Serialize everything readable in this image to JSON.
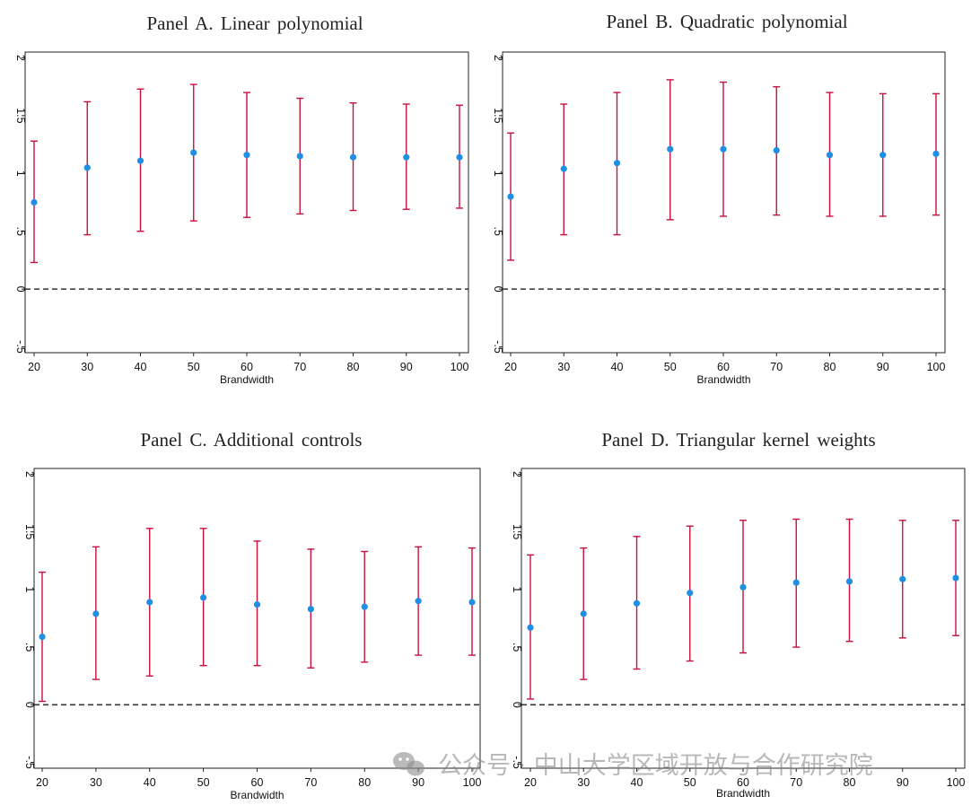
{
  "colors": {
    "ci": "#c8103e",
    "point": "#1f8fe6",
    "frame": "#222222",
    "zero_line": "#333333"
  },
  "watermark": {
    "icon": "wechat-icon",
    "text": "公众号 · 中山大学区域开放与合作研究院"
  },
  "chart_data": [
    {
      "type": "scatter",
      "subtype": "point estimates with confidence intervals",
      "title": "Panel A. Linear polynomial",
      "xlabel": "Brandwidth",
      "ylabel": "",
      "x": [
        20,
        30,
        40,
        50,
        60,
        70,
        80,
        90,
        100
      ],
      "x_tick_labels": [
        "20",
        "30",
        "40",
        "50",
        "60",
        "70",
        "80",
        "90",
        "100"
      ],
      "y_ticks": [
        -0.5,
        0,
        0.5,
        1,
        1.5,
        2
      ],
      "y_tick_labels": [
        "-.5",
        "0",
        ".5",
        "1",
        "1.5",
        "2"
      ],
      "ylim": [
        -0.55,
        2.05
      ],
      "estimate": [
        0.75,
        1.05,
        1.11,
        1.18,
        1.16,
        1.15,
        1.14,
        1.14,
        1.14
      ],
      "ci_upper": [
        1.28,
        1.62,
        1.73,
        1.77,
        1.7,
        1.65,
        1.61,
        1.6,
        1.59
      ],
      "ci_lower": [
        0.23,
        0.47,
        0.5,
        0.59,
        0.62,
        0.65,
        0.68,
        0.69,
        0.7
      ],
      "reference_line": 0,
      "grid": false
    },
    {
      "type": "scatter",
      "subtype": "point estimates with confidence intervals",
      "title": "Panel B. Quadratic polynomial",
      "xlabel": "Brandwidth",
      "ylabel": "",
      "x": [
        20,
        30,
        40,
        50,
        60,
        70,
        80,
        90,
        100
      ],
      "x_tick_labels": [
        "20",
        "30",
        "40",
        "50",
        "60",
        "70",
        "80",
        "90",
        "100"
      ],
      "y_ticks": [
        -0.5,
        0,
        0.5,
        1,
        1.5,
        2
      ],
      "y_tick_labels": [
        "-.5",
        "0",
        ".5",
        "1",
        "1.5",
        "2"
      ],
      "ylim": [
        -0.55,
        2.05
      ],
      "estimate": [
        0.8,
        1.04,
        1.09,
        1.21,
        1.21,
        1.2,
        1.16,
        1.16,
        1.17
      ],
      "ci_upper": [
        1.35,
        1.6,
        1.7,
        1.81,
        1.79,
        1.75,
        1.7,
        1.69,
        1.69
      ],
      "ci_lower": [
        0.25,
        0.47,
        0.47,
        0.6,
        0.63,
        0.64,
        0.63,
        0.63,
        0.64
      ],
      "reference_line": 0,
      "grid": false
    },
    {
      "type": "scatter",
      "subtype": "point estimates with confidence intervals",
      "title": "Panel C. Additional controls",
      "xlabel": "Brandwidth",
      "ylabel": "",
      "x": [
        20,
        30,
        40,
        50,
        60,
        70,
        80,
        90,
        100
      ],
      "x_tick_labels": [
        "20",
        "30",
        "40",
        "50",
        "60",
        "70",
        "80",
        "90",
        "100"
      ],
      "y_ticks": [
        -0.5,
        0,
        0.5,
        1,
        1.5,
        2
      ],
      "y_tick_labels": [
        "-.5",
        "0",
        ".5",
        "1",
        "1.5",
        "2"
      ],
      "ylim": [
        -0.55,
        2.05
      ],
      "estimate": [
        0.59,
        0.79,
        0.89,
        0.93,
        0.87,
        0.83,
        0.85,
        0.9,
        0.89
      ],
      "ci_upper": [
        1.15,
        1.37,
        1.53,
        1.53,
        1.42,
        1.35,
        1.33,
        1.37,
        1.36
      ],
      "ci_lower": [
        0.03,
        0.22,
        0.25,
        0.34,
        0.34,
        0.32,
        0.37,
        0.43,
        0.43
      ],
      "reference_line": 0,
      "grid": false
    },
    {
      "type": "scatter",
      "subtype": "point estimates with confidence intervals",
      "title": "Panel D. Triangular kernel weights",
      "xlabel": "Brandwidth",
      "ylabel": "",
      "x": [
        20,
        30,
        40,
        50,
        60,
        70,
        80,
        90,
        100
      ],
      "x_tick_labels": [
        "20",
        "30",
        "40",
        "50",
        "60",
        "70",
        "80",
        "90",
        "100"
      ],
      "y_ticks": [
        -0.5,
        0,
        0.5,
        1,
        1.5,
        2
      ],
      "y_tick_labels": [
        "-.5",
        "0",
        ".5",
        "1",
        "1.5",
        "2"
      ],
      "ylim": [
        -0.55,
        2.05
      ],
      "estimate": [
        0.67,
        0.79,
        0.88,
        0.97,
        1.02,
        1.06,
        1.07,
        1.09,
        1.1
      ],
      "ci_upper": [
        1.3,
        1.36,
        1.46,
        1.55,
        1.6,
        1.61,
        1.61,
        1.6,
        1.6
      ],
      "ci_lower": [
        0.05,
        0.22,
        0.31,
        0.38,
        0.45,
        0.5,
        0.55,
        0.58,
        0.6
      ],
      "reference_line": 0,
      "grid": false
    }
  ]
}
